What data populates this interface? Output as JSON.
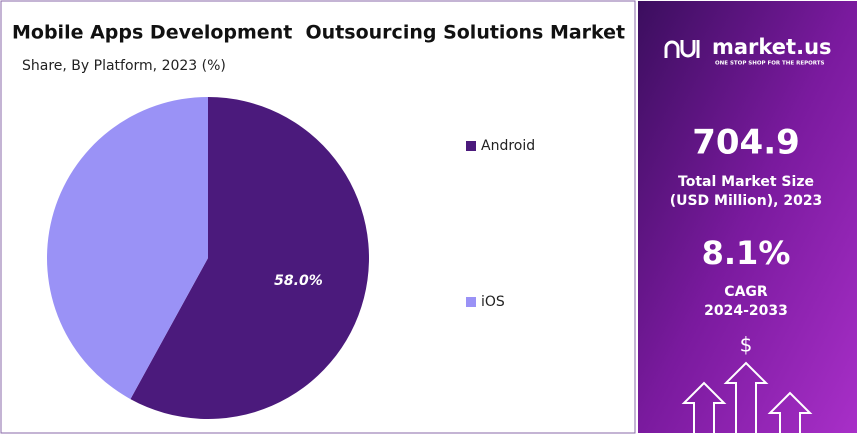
{
  "chart_data": {
    "type": "pie",
    "title": "Mobile Apps Development  Outsourcing Solutions Market",
    "subtitle": "Share, By Platform, 2023 (%)",
    "categories": [
      "Android",
      "iOS"
    ],
    "values": [
      58.0,
      42.0
    ],
    "value_labels": [
      "58.0%",
      null
    ],
    "colors": [
      "#4b1a7c",
      "#9a92f6"
    ],
    "legend": "right"
  },
  "panel": {
    "brand": "market.us",
    "tagline": "ONE STOP SHOP FOR THE REPORTS",
    "market_size": "704.9",
    "market_size_label": [
      "Total Market Size",
      "(USD Million), 2023"
    ],
    "cagr": "8.1%",
    "cagr_label": [
      "CAGR",
      "2024-2033"
    ],
    "currency": "$"
  }
}
